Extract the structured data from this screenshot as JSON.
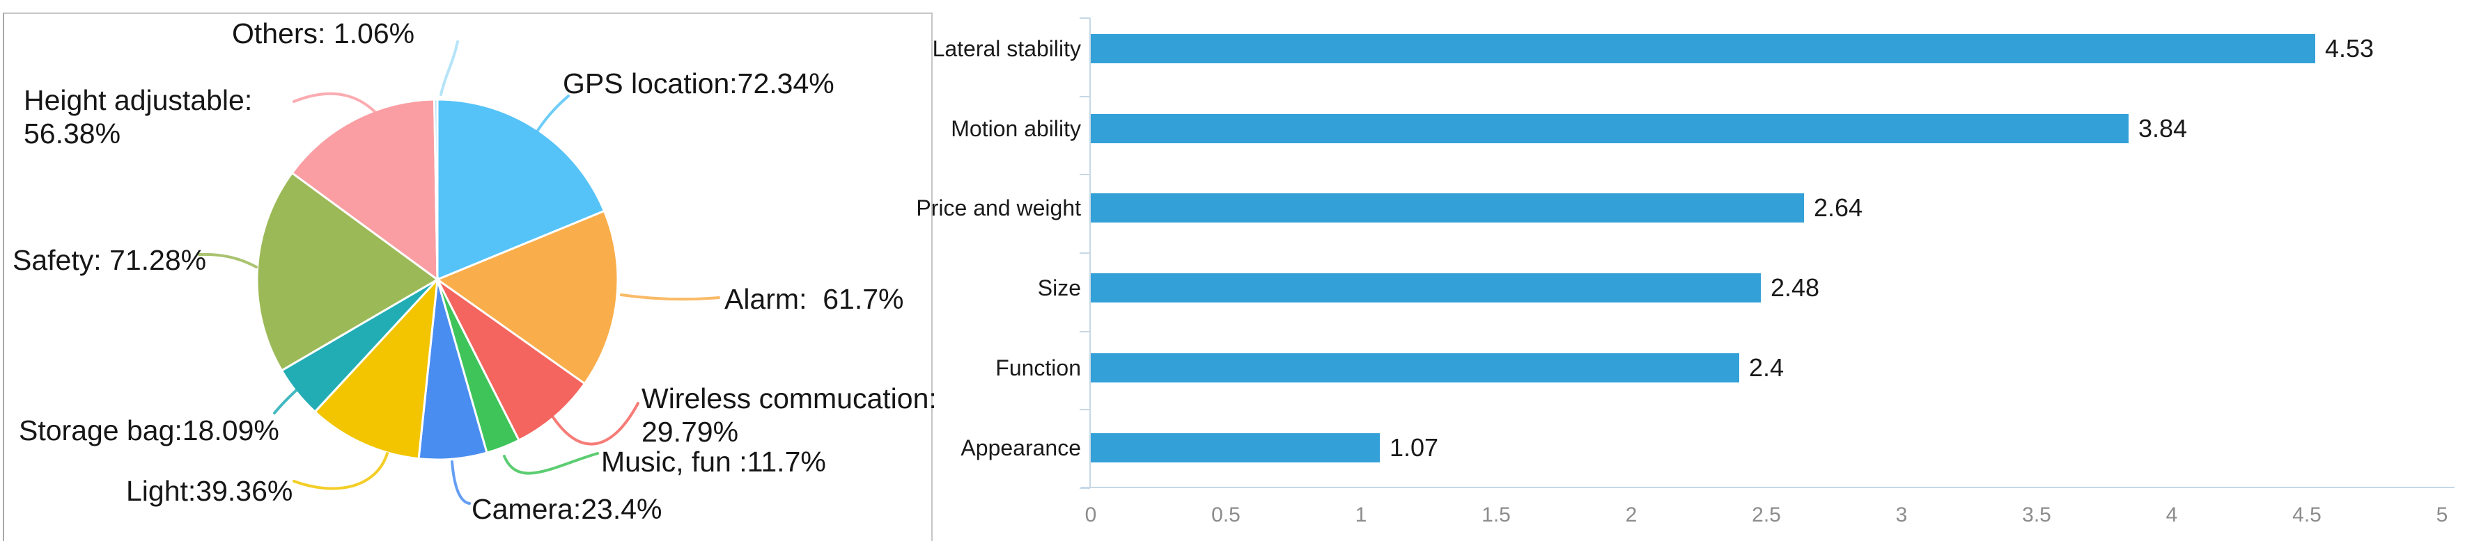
{
  "figure": {
    "description_left": "pie chart of wanted smart-luggage features with percentage labels",
    "description_right": "horizontal bar chart of purchase-decision factor scores"
  },
  "chart_data": [
    {
      "type": "pie",
      "title": "",
      "legend_position": "none",
      "label_style": "outside with colored leader lines",
      "slices": [
        {
          "name": "GPS location",
          "value": 72.34,
          "label_lines": [
            "GPS location:72.34%"
          ],
          "color": "#55C3F7"
        },
        {
          "name": "Alarm",
          "value": 61.7,
          "label_lines": [
            "Alarm:  61.7%"
          ],
          "color": "#F9AE4B"
        },
        {
          "name": "Wireless commucation",
          "value": 29.79,
          "label_lines": [
            "Wireless commucation:",
            "29.79%"
          ],
          "color": "#F4655F"
        },
        {
          "name": "Music, fun",
          "value": 11.7,
          "label_lines": [
            "Music, fun :11.7%"
          ],
          "color": "#3FC45A"
        },
        {
          "name": "Camera",
          "value": 23.4,
          "label_lines": [
            "Camera:23.4%"
          ],
          "color": "#4A8DF0"
        },
        {
          "name": "Light",
          "value": 39.36,
          "label_lines": [
            "Light:39.36%"
          ],
          "color": "#F2C500"
        },
        {
          "name": "Storage bag",
          "value": 18.09,
          "label_lines": [
            "Storage bag:18.09%"
          ],
          "color": "#22ADB5"
        },
        {
          "name": "Safety",
          "value": 71.28,
          "label_lines": [
            "Safety: 71.28%"
          ],
          "color": "#9CB957"
        },
        {
          "name": "Height adjustable",
          "value": 56.38,
          "label_lines": [
            "Height adjustable:",
            "56.38%"
          ],
          "color": "#FA9EA3"
        },
        {
          "name": "Others",
          "value": 1.06,
          "label_lines": [
            "Others: 1.06%"
          ],
          "color": "#A8DFF7"
        }
      ]
    },
    {
      "type": "bar",
      "orientation": "horizontal",
      "title": "",
      "grid": false,
      "categories": [
        "Lateral stability",
        "Motion ability",
        "Price and weight",
        "Size",
        "Function",
        "Appearance"
      ],
      "values": [
        4.53,
        3.84,
        2.64,
        2.48,
        2.4,
        1.07
      ],
      "value_labels": [
        "4.53",
        "3.84",
        "2.64",
        "2.48",
        "2.4",
        "1.07"
      ],
      "xlim": [
        0,
        5
      ],
      "x_tick_step": 0.5,
      "x_ticks": [
        "0",
        "0.5",
        "1",
        "1.5",
        "2",
        "2.5",
        "3",
        "3.5",
        "4",
        "4.5",
        "5"
      ],
      "bar_color": "#33A0D8",
      "axis_color": "#c7d8e6",
      "tick_label_color": "#8c8c8c",
      "value_label_color": "#1a1a1a"
    }
  ]
}
